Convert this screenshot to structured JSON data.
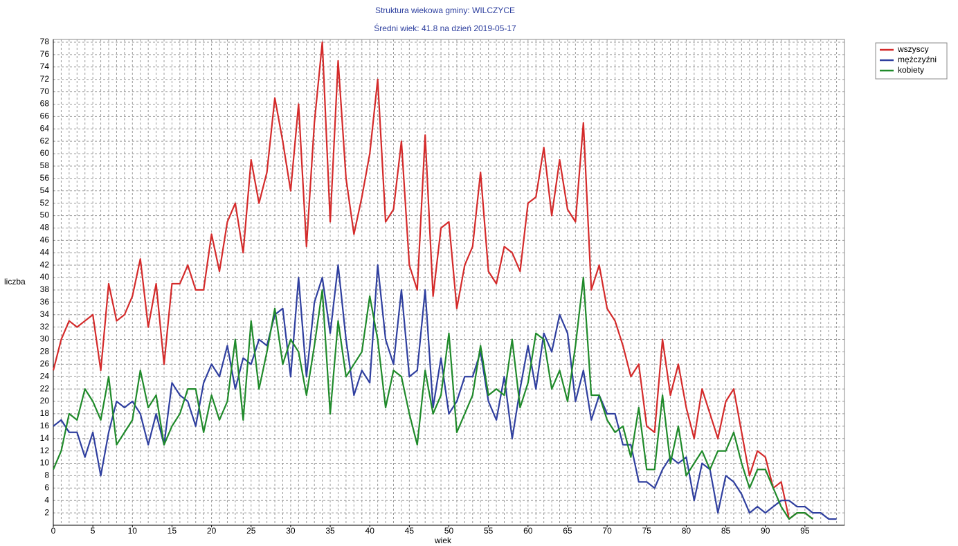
{
  "chart_data": {
    "type": "line",
    "title": "Struktura wiekowa gminy: WILCZYCE",
    "subtitle": "Średni wiek: 41.8 na dzień 2019-05-17",
    "x_label": "wiek",
    "y_label": "liczba",
    "x": [
      0,
      1,
      2,
      3,
      4,
      5,
      6,
      7,
      8,
      9,
      10,
      11,
      12,
      13,
      14,
      15,
      16,
      17,
      18,
      19,
      20,
      21,
      22,
      23,
      24,
      25,
      26,
      27,
      28,
      29,
      30,
      31,
      32,
      33,
      34,
      35,
      36,
      37,
      38,
      39,
      40,
      41,
      42,
      43,
      44,
      45,
      46,
      47,
      48,
      49,
      50,
      51,
      52,
      53,
      54,
      55,
      56,
      57,
      58,
      59,
      60,
      61,
      62,
      63,
      64,
      65,
      66,
      67,
      68,
      69,
      70,
      71,
      72,
      73,
      74,
      75,
      76,
      77,
      78,
      79,
      80,
      81,
      82,
      83,
      84,
      85,
      86,
      87,
      88,
      89,
      90,
      91,
      92,
      93,
      94,
      95,
      96,
      97,
      98,
      99
    ],
    "series": [
      {
        "name": "wszyscy",
        "color": "#d42a2a",
        "values": [
          25,
          30,
          33,
          32,
          33,
          34,
          25,
          39,
          33,
          34,
          37,
          43,
          32,
          39,
          26,
          39,
          39,
          42,
          38,
          38,
          47,
          41,
          49,
          52,
          44,
          59,
          52,
          57,
          69,
          62,
          54,
          68,
          45,
          65,
          78,
          49,
          75,
          56,
          47,
          53,
          60,
          72,
          49,
          51,
          62,
          42,
          38,
          63,
          37,
          48,
          49,
          35,
          42,
          45,
          57,
          41,
          39,
          45,
          44,
          41,
          52,
          53,
          61,
          50,
          59,
          51,
          49,
          65,
          38,
          42,
          35,
          33,
          29,
          24,
          26,
          16,
          15,
          30,
          21,
          26,
          19,
          14,
          22,
          18,
          14,
          20,
          22,
          15,
          8,
          12,
          11,
          6,
          7,
          1,
          2,
          2,
          1,
          null,
          null,
          null
        ]
      },
      {
        "name": "mężczyźni",
        "color": "#2f3f9f",
        "values": [
          16,
          17,
          15,
          15,
          11,
          15,
          8,
          15,
          20,
          19,
          20,
          18,
          13,
          18,
          13,
          23,
          21,
          20,
          16,
          23,
          26,
          24,
          29,
          22,
          27,
          26,
          30,
          29,
          34,
          35,
          24,
          40,
          24,
          36,
          40,
          31,
          42,
          30,
          21,
          25,
          23,
          42,
          30,
          26,
          38,
          24,
          25,
          38,
          19,
          27,
          18,
          20,
          24,
          24,
          28,
          20,
          17,
          24,
          14,
          22,
          29,
          22,
          31,
          28,
          34,
          31,
          20,
          25,
          17,
          21,
          18,
          18,
          13,
          13,
          7,
          7,
          6,
          9,
          11,
          10,
          11,
          4,
          10,
          9,
          2,
          8,
          7,
          5,
          2,
          3,
          2,
          3,
          4,
          4,
          3,
          3,
          2,
          2,
          1,
          1
        ]
      },
      {
        "name": "kobiety",
        "color": "#1f8a2a",
        "values": [
          9,
          12,
          18,
          17,
          22,
          20,
          17,
          24,
          13,
          15,
          17,
          25,
          19,
          21,
          13,
          16,
          18,
          22,
          22,
          15,
          21,
          17,
          20,
          30,
          17,
          33,
          22,
          28,
          35,
          26,
          30,
          28,
          21,
          29,
          38,
          18,
          33,
          24,
          26,
          28,
          37,
          30,
          19,
          25,
          24,
          18,
          13,
          25,
          18,
          21,
          31,
          15,
          18,
          21,
          29,
          21,
          22,
          21,
          30,
          19,
          23,
          31,
          30,
          22,
          25,
          20,
          29,
          40,
          21,
          21,
          17,
          15,
          16,
          11,
          19,
          9,
          9,
          21,
          10,
          16,
          8,
          10,
          12,
          9,
          12,
          12,
          15,
          10,
          6,
          9,
          9,
          6,
          3,
          1,
          2,
          2,
          1,
          null,
          null,
          null
        ]
      }
    ],
    "xlim": [
      0,
      100
    ],
    "ylim": [
      0,
      78
    ],
    "xticks": [
      0,
      5,
      10,
      15,
      20,
      25,
      30,
      35,
      40,
      45,
      50,
      55,
      60,
      65,
      70,
      75,
      80,
      85,
      90,
      95
    ],
    "yticks": [
      2,
      4,
      6,
      8,
      10,
      12,
      14,
      16,
      18,
      20,
      22,
      24,
      26,
      28,
      30,
      32,
      34,
      36,
      38,
      40,
      42,
      44,
      46,
      48,
      50,
      52,
      54,
      56,
      58,
      60,
      62,
      64,
      66,
      68,
      70,
      72,
      74,
      76,
      78
    ],
    "grid": true,
    "legend": "top-right"
  }
}
